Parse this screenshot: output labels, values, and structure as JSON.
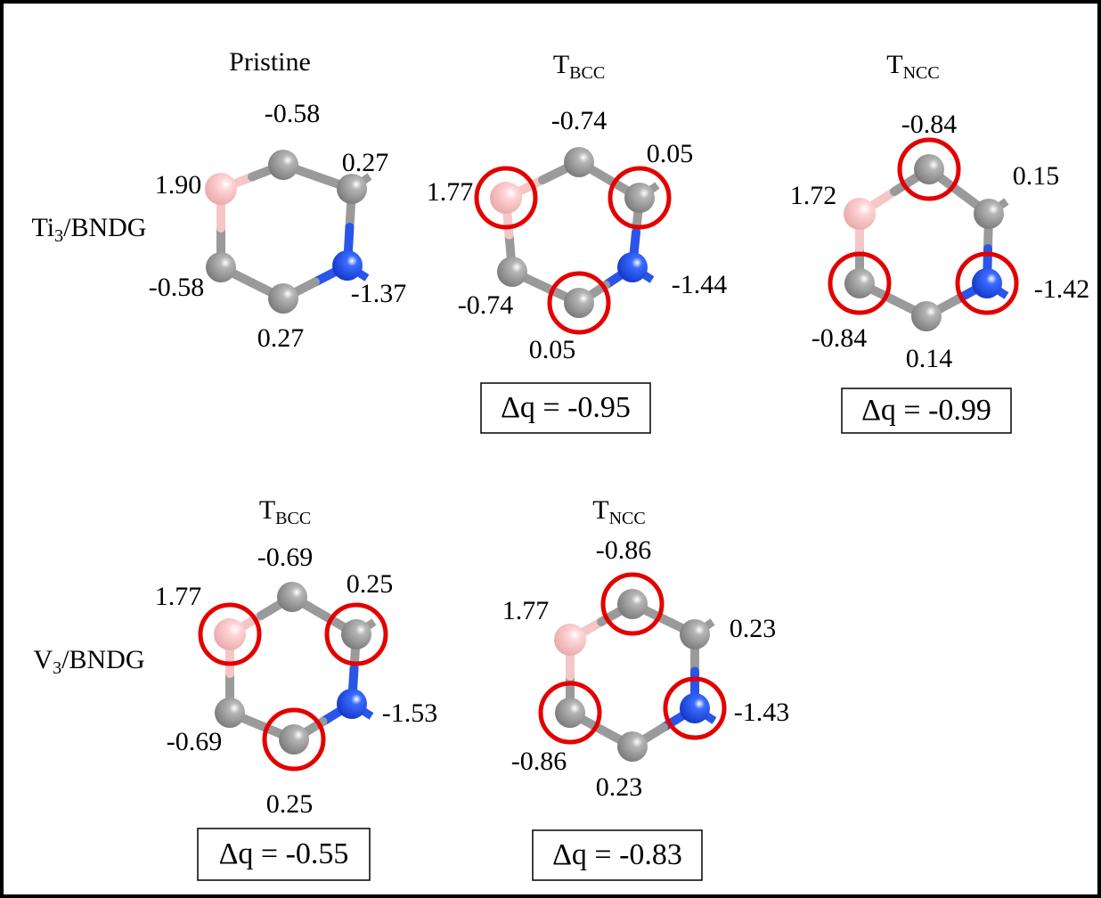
{
  "rows": [
    {
      "label": {
        "main": "Ti",
        "sub": "3",
        "rest": "/BNDG"
      },
      "panels": [
        {
          "title": {
            "main": "Pristine"
          },
          "charges": [
            "1.90",
            "-0.58",
            "0.27",
            "-1.37",
            "0.27",
            "-0.58"
          ]
        },
        {
          "title": {
            "main": "T",
            "sub": "BCC"
          },
          "charges": [
            "1.77",
            "-0.74",
            "0.05",
            "-1.44",
            "0.05",
            "-0.74"
          ],
          "delta": "Δq = -0.95"
        },
        {
          "title": {
            "main": "T",
            "sub": "NCC"
          },
          "charges": [
            "1.72",
            "-0.84",
            "0.15",
            "-1.42",
            "0.14",
            "-0.84"
          ],
          "delta": "Δq = -0.99"
        }
      ]
    },
    {
      "label": {
        "main": "V",
        "sub": "3",
        "rest": "/BNDG"
      },
      "panels": [
        {
          "title": {
            "main": "T",
            "sub": "BCC"
          },
          "charges": [
            "1.77",
            "-0.69",
            "0.25",
            "-1.53",
            "0.25",
            "-0.69"
          ],
          "delta": "Δq = -0.55"
        },
        {
          "title": {
            "main": "T",
            "sub": "NCC"
          },
          "charges": [
            "1.77",
            "-0.86",
            "0.23",
            "-1.43",
            "0.23",
            "-0.86"
          ],
          "delta": "Δq = -0.83"
        }
      ]
    }
  ]
}
